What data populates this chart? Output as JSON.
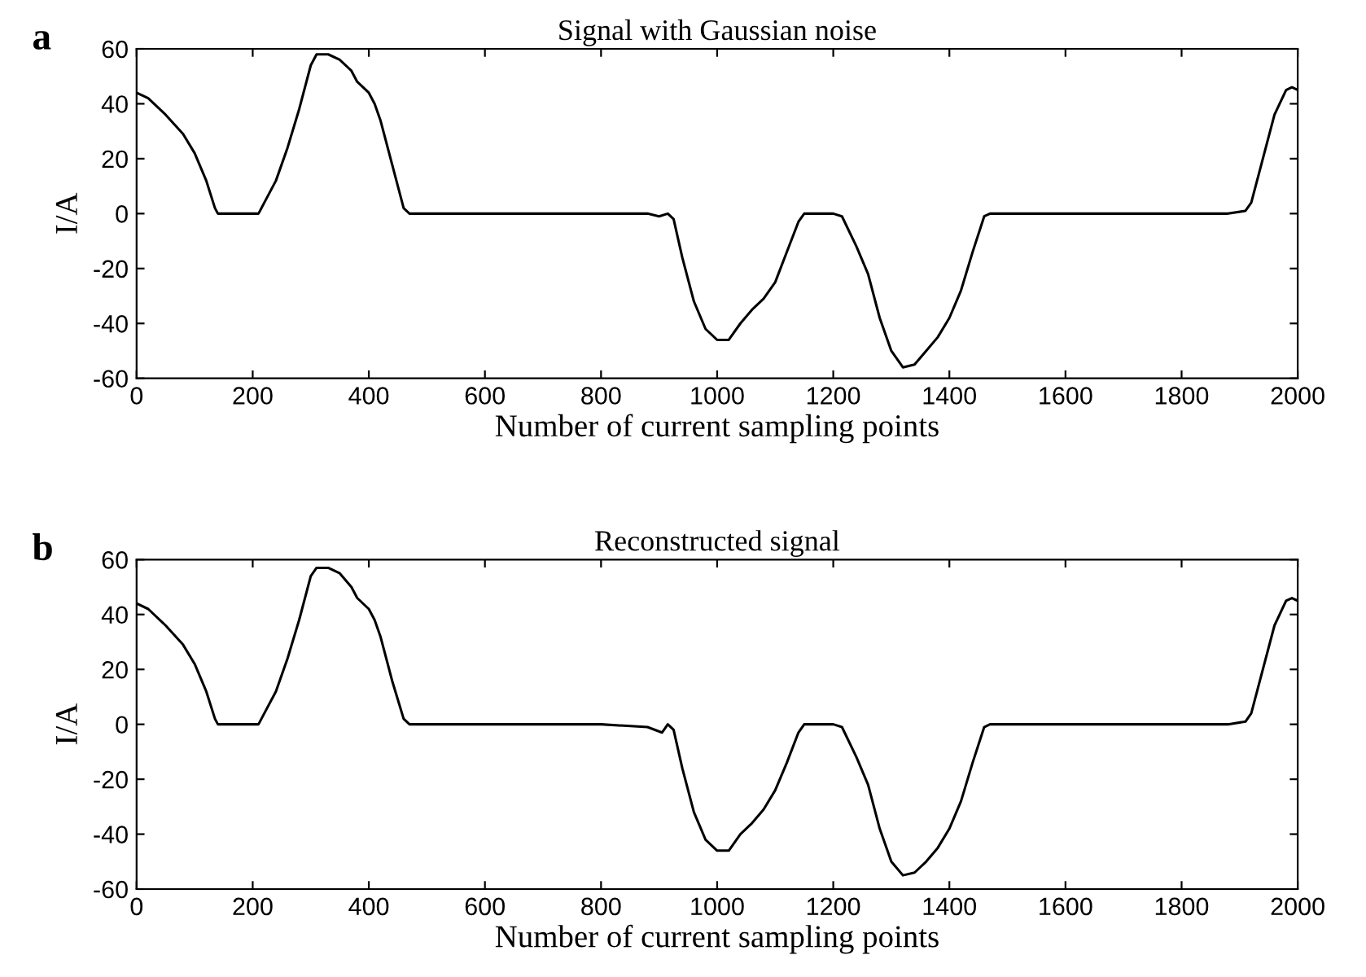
{
  "chart_data": [
    {
      "type": "line",
      "title": "Signal with Gaussian noise",
      "xlabel": "Number of current sampling points",
      "ylabel": "I/A",
      "annotations": [
        "a"
      ],
      "xlim": [
        0,
        2000
      ],
      "ylim": [
        -60,
        60
      ],
      "xticks": [
        0,
        200,
        400,
        600,
        800,
        1000,
        1200,
        1400,
        1600,
        1800,
        2000
      ],
      "yticks": [
        -60,
        -40,
        -20,
        0,
        20,
        40,
        60
      ],
      "grid": false,
      "legend": false,
      "series": [
        {
          "color": "#000000",
          "x": [
            0,
            20,
            50,
            80,
            100,
            120,
            135,
            140,
            150,
            180,
            210,
            220,
            240,
            260,
            280,
            300,
            310,
            330,
            350,
            370,
            380,
            400,
            410,
            420,
            440,
            460,
            470,
            500,
            600,
            700,
            800,
            880,
            900,
            915,
            925,
            940,
            960,
            980,
            1000,
            1020,
            1040,
            1060,
            1080,
            1100,
            1120,
            1140,
            1150,
            1200,
            1215,
            1240,
            1260,
            1280,
            1300,
            1320,
            1340,
            1360,
            1380,
            1400,
            1420,
            1440,
            1460,
            1470,
            1600,
            1700,
            1800,
            1880,
            1910,
            1920,
            1940,
            1960,
            1980,
            1990,
            2000
          ],
          "values": [
            44,
            42,
            36,
            29,
            22,
            12,
            2,
            0,
            0,
            0,
            0,
            4,
            12,
            24,
            38,
            54,
            58,
            58,
            56,
            52,
            48,
            44,
            40,
            34,
            18,
            2,
            0,
            0,
            0,
            0,
            0,
            0,
            -1,
            0,
            -2,
            -16,
            -32,
            -42,
            -46,
            -46,
            -40,
            -35,
            -31,
            -25,
            -14,
            -3,
            0,
            0,
            -1,
            -12,
            -22,
            -38,
            -50,
            -56,
            -55,
            -50,
            -45,
            -38,
            -28,
            -14,
            -1,
            0,
            0,
            0,
            0,
            0,
            1,
            4,
            20,
            36,
            45,
            46,
            45
          ]
        }
      ]
    },
    {
      "type": "line",
      "title": "Reconstructed signal",
      "xlabel": "Number of current sampling points",
      "ylabel": "I/A",
      "annotations": [
        "b"
      ],
      "xlim": [
        0,
        2000
      ],
      "ylim": [
        -60,
        60
      ],
      "xticks": [
        0,
        200,
        400,
        600,
        800,
        1000,
        1200,
        1400,
        1600,
        1800,
        2000
      ],
      "yticks": [
        -60,
        -40,
        -20,
        0,
        20,
        40,
        60
      ],
      "grid": false,
      "legend": false,
      "series": [
        {
          "color": "#000000",
          "x": [
            0,
            20,
            50,
            80,
            100,
            120,
            135,
            140,
            150,
            180,
            210,
            220,
            240,
            260,
            280,
            300,
            310,
            330,
            350,
            370,
            380,
            400,
            410,
            420,
            440,
            460,
            470,
            500,
            600,
            700,
            800,
            880,
            905,
            915,
            925,
            940,
            960,
            980,
            1000,
            1020,
            1040,
            1060,
            1080,
            1100,
            1120,
            1140,
            1150,
            1200,
            1215,
            1240,
            1260,
            1280,
            1300,
            1320,
            1340,
            1360,
            1380,
            1400,
            1420,
            1440,
            1460,
            1470,
            1600,
            1700,
            1800,
            1880,
            1910,
            1920,
            1940,
            1960,
            1980,
            1990,
            2000
          ],
          "values": [
            44,
            42,
            36,
            29,
            22,
            12,
            2,
            0,
            0,
            0,
            0,
            4,
            12,
            24,
            38,
            54,
            57,
            57,
            55,
            50,
            46,
            42,
            38,
            32,
            16,
            2,
            0,
            0,
            0,
            0,
            0,
            -1,
            -3,
            0,
            -2,
            -16,
            -32,
            -42,
            -46,
            -46,
            -40,
            -36,
            -31,
            -24,
            -14,
            -3,
            0,
            0,
            -1,
            -12,
            -22,
            -38,
            -50,
            -55,
            -54,
            -50,
            -45,
            -38,
            -28,
            -14,
            -1,
            0,
            0,
            0,
            0,
            0,
            1,
            4,
            20,
            36,
            45,
            46,
            45
          ]
        }
      ]
    }
  ]
}
